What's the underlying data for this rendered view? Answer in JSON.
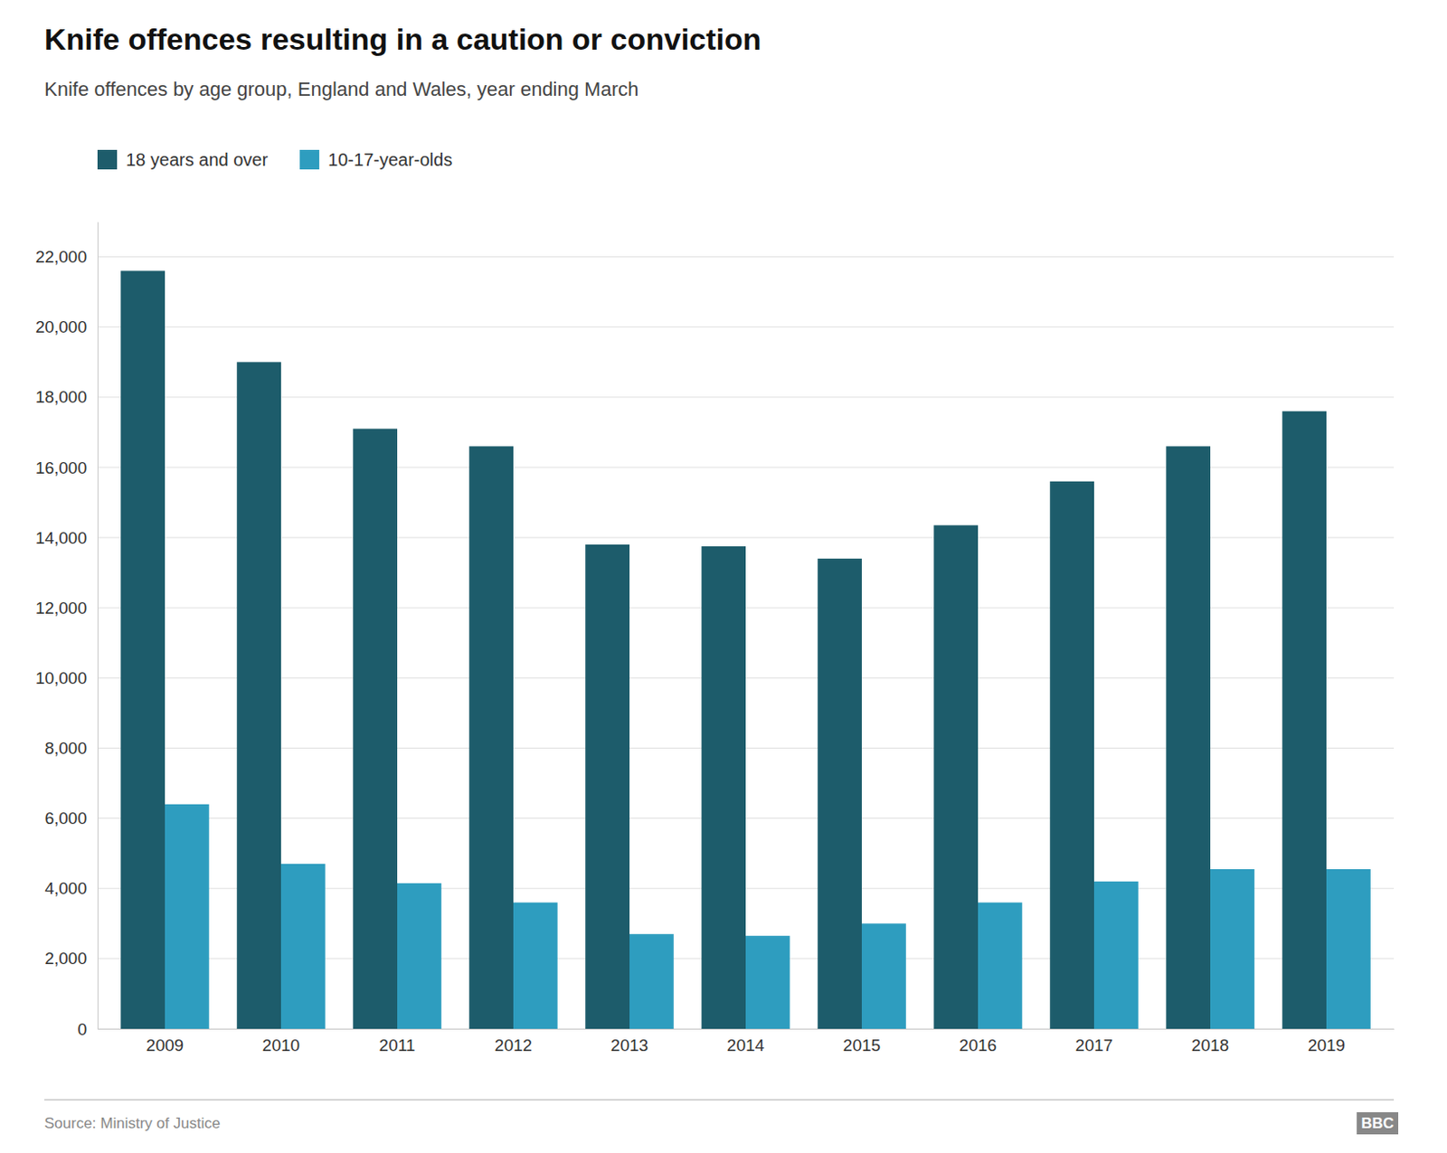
{
  "chart_data": {
    "type": "bar",
    "title": "Knife offences resulting in a caution or conviction",
    "subtitle": "Knife offences by age group, England and Wales, year ending March",
    "source": "Source: Ministry of Justice",
    "annotations": [
      "BBC"
    ],
    "categories": [
      "2009",
      "2010",
      "2011",
      "2012",
      "2013",
      "2014",
      "2015",
      "2016",
      "2017",
      "2018",
      "2019"
    ],
    "series": [
      {
        "name": "18 years and over",
        "color": "#1d5c6b",
        "values": [
          21600,
          19000,
          17100,
          16600,
          13800,
          13750,
          13400,
          14350,
          15600,
          16600,
          17600
        ]
      },
      {
        "name": "10-17-year-olds",
        "color": "#2e9dbf",
        "values": [
          6400,
          4700,
          4150,
          3600,
          2700,
          2650,
          3000,
          3600,
          4200,
          4550,
          4550
        ]
      }
    ],
    "ylim": [
      0,
      23000
    ],
    "yticks": [
      0,
      {
        "value": 2000,
        "label": "2,000"
      },
      {
        "value": 4000,
        "label": "4,000"
      },
      {
        "value": 6000,
        "label": "6,000"
      },
      {
        "value": 8000,
        "label": "8,000"
      },
      {
        "value": 10000,
        "label": "10,000"
      },
      {
        "value": 12000,
        "label": "12,000"
      },
      {
        "value": 14000,
        "label": "14,000"
      },
      {
        "value": 16000,
        "label": "16,000"
      },
      {
        "value": 18000,
        "label": "18,000"
      },
      {
        "value": 20000,
        "label": "20,000"
      },
      {
        "value": 22000,
        "label": "22,000"
      }
    ],
    "grid": true,
    "legend": "top-left"
  }
}
